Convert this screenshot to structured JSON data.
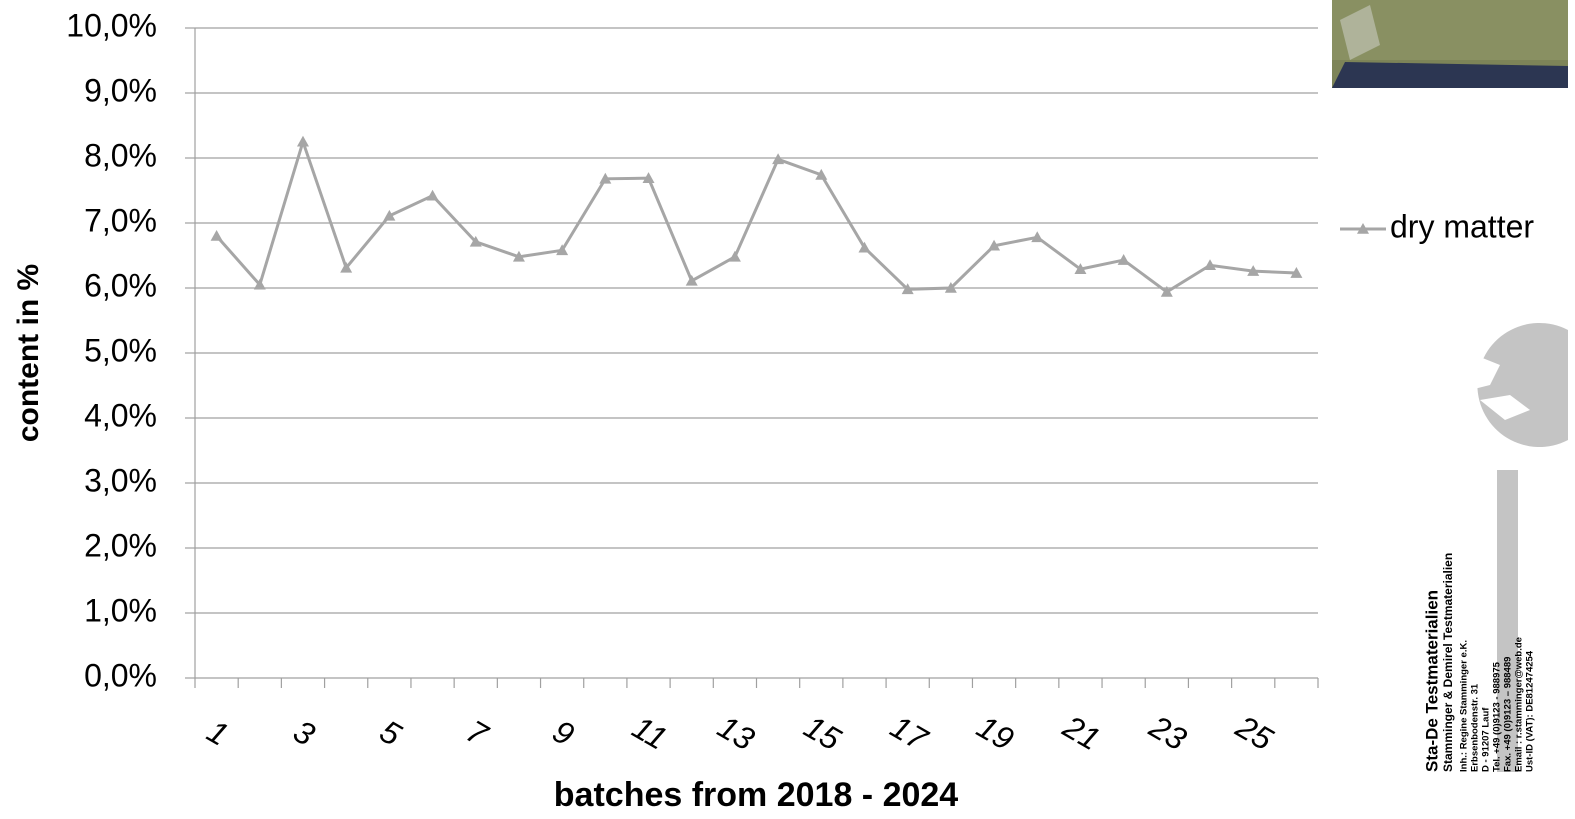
{
  "chart_data": {
    "type": "line",
    "categories": [
      "1",
      null,
      "3",
      null,
      "5",
      null,
      "7",
      null,
      "9",
      null,
      "11",
      null,
      "13",
      null,
      "15",
      null,
      "17",
      null,
      "19",
      null,
      "21",
      null,
      "23",
      null,
      "25",
      null
    ],
    "series": [
      {
        "name": "dry matter",
        "color": "#a6a6a6",
        "values": [
          6.8,
          6.05,
          8.25,
          6.31,
          7.11,
          7.42,
          6.71,
          6.48,
          6.58,
          7.68,
          7.69,
          6.11,
          6.48,
          7.98,
          7.74,
          6.62,
          5.98,
          6.0,
          6.65,
          6.78,
          6.29,
          6.43,
          5.94,
          6.35,
          6.26,
          6.23
        ]
      }
    ],
    "ylim": [
      0,
      10
    ],
    "yticks": [
      {
        "value": 0,
        "label": "0,0%"
      },
      {
        "value": 1,
        "label": "1,0%"
      },
      {
        "value": 2,
        "label": "2,0%"
      },
      {
        "value": 3,
        "label": "3,0%"
      },
      {
        "value": 4,
        "label": "4,0%"
      },
      {
        "value": 5,
        "label": "5,0%"
      },
      {
        "value": 6,
        "label": "6,0%"
      },
      {
        "value": 7,
        "label": "7,0%"
      },
      {
        "value": 8,
        "label": "8,0%"
      },
      {
        "value": 9,
        "label": "9,0%"
      },
      {
        "value": 10,
        "label": "10,0%"
      }
    ],
    "ylabel": "content in %",
    "xlabel": "batches from 2018 - 2024",
    "grid": true,
    "legend": "right"
  },
  "logo": {
    "title": "Sta-De Testmaterialien",
    "lines": [
      "Stamminger & Demirel Testmaterialien",
      "Inh.: Regine Stamminger e.K.",
      "Erbsenbodenstr. 31",
      "D - 91207 Lauf",
      "Tel. +49 (0)9123 - 988975",
      "Fax. +49 (0)9123 – 988489",
      "Email : r.stamminger@web.de",
      "Ust-ID (VAT): DE812474254"
    ]
  }
}
